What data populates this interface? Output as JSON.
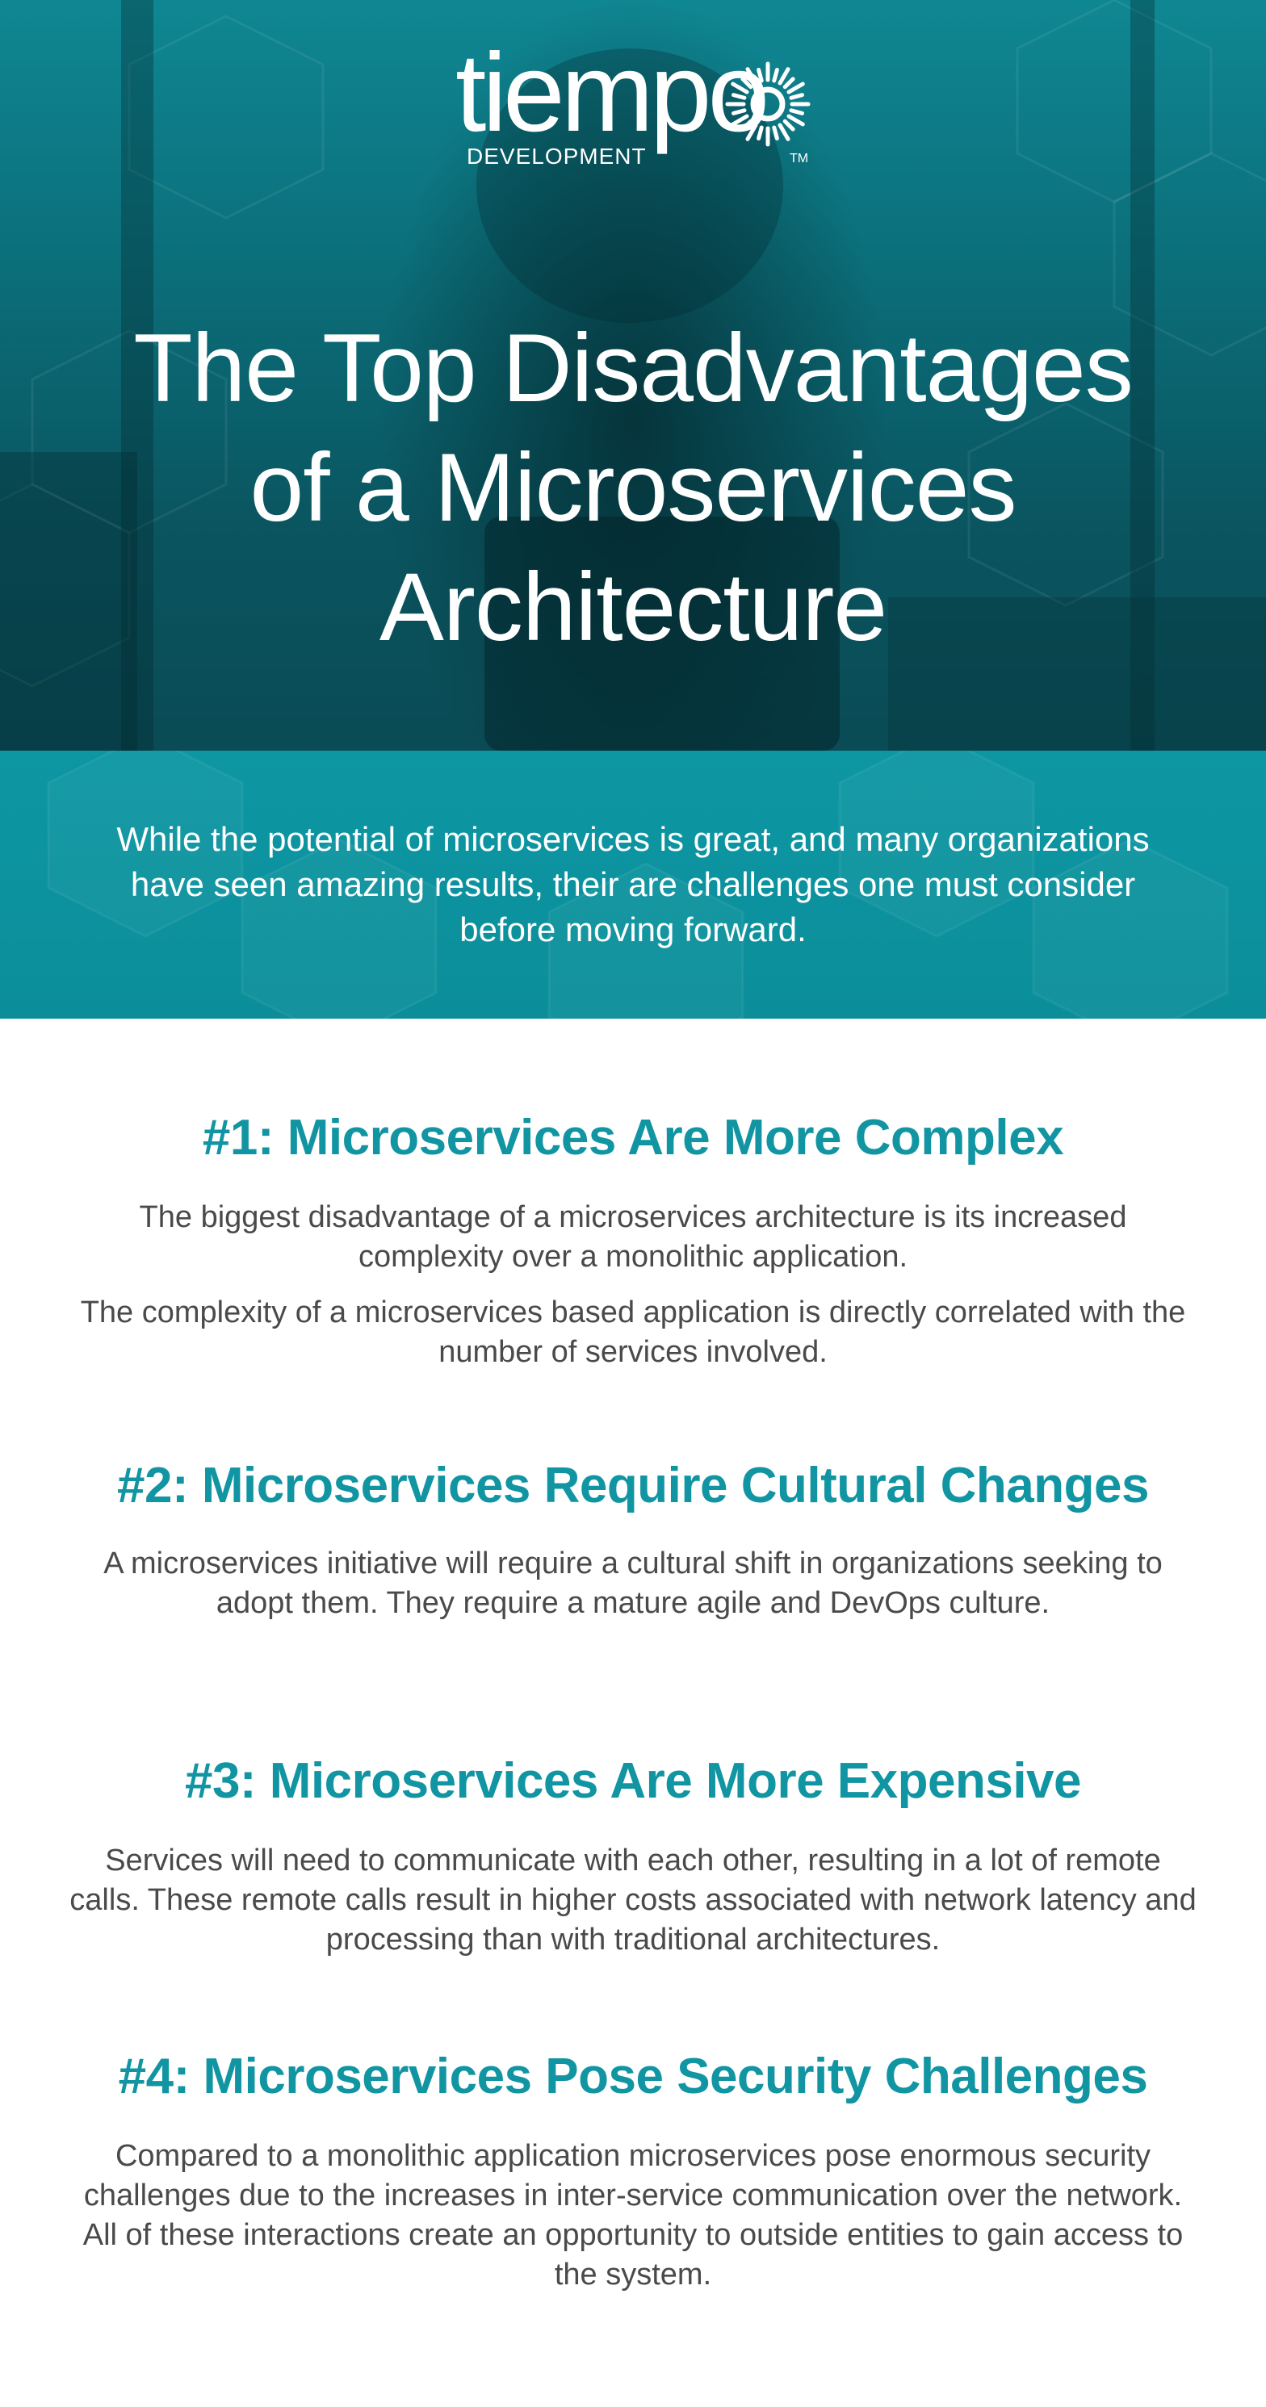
{
  "brand": {
    "name": "tiempo",
    "subtitle": "DEVELOPMENT",
    "trademark": "TM"
  },
  "colors": {
    "teal": "#0d97a3",
    "heading": "#1195a2",
    "body_text": "#4a4a4a"
  },
  "hero": {
    "title_lines": [
      "The Top Disadvantages",
      "of a Microservices",
      "Architecture"
    ]
  },
  "intro": {
    "text": "While the potential of microservices is great, and many organizations have seen amazing results, their are challenges one must consider before moving forward."
  },
  "sections": [
    {
      "heading": "#1: Microservices Are More Complex",
      "paragraphs": [
        "The biggest disadvantage of a microservices architecture is its increased complexity over a monolithic application.",
        "The complexity of a microservices based application is directly correlated with the number of services involved."
      ]
    },
    {
      "heading": "#2: Microservices Require Cultural Changes",
      "paragraphs": [
        "A microservices initiative will require a cultural shift in organizations seeking to adopt them. They require a mature agile and DevOps culture."
      ]
    },
    {
      "heading": "#3: Microservices Are More Expensive",
      "paragraphs": [
        "Services will need to communicate with each other, resulting in a lot of remote calls. These remote calls result in higher costs associated with network latency and processing than with traditional architectures."
      ]
    },
    {
      "heading": "#4: Microservices Pose Security Challenges",
      "paragraphs": [
        "Compared to a monolithic application microservices pose enormous security challenges due to the increases in inter-service communication over the network. All of these interactions create an opportunity to outside entities to gain access to the system."
      ]
    }
  ]
}
